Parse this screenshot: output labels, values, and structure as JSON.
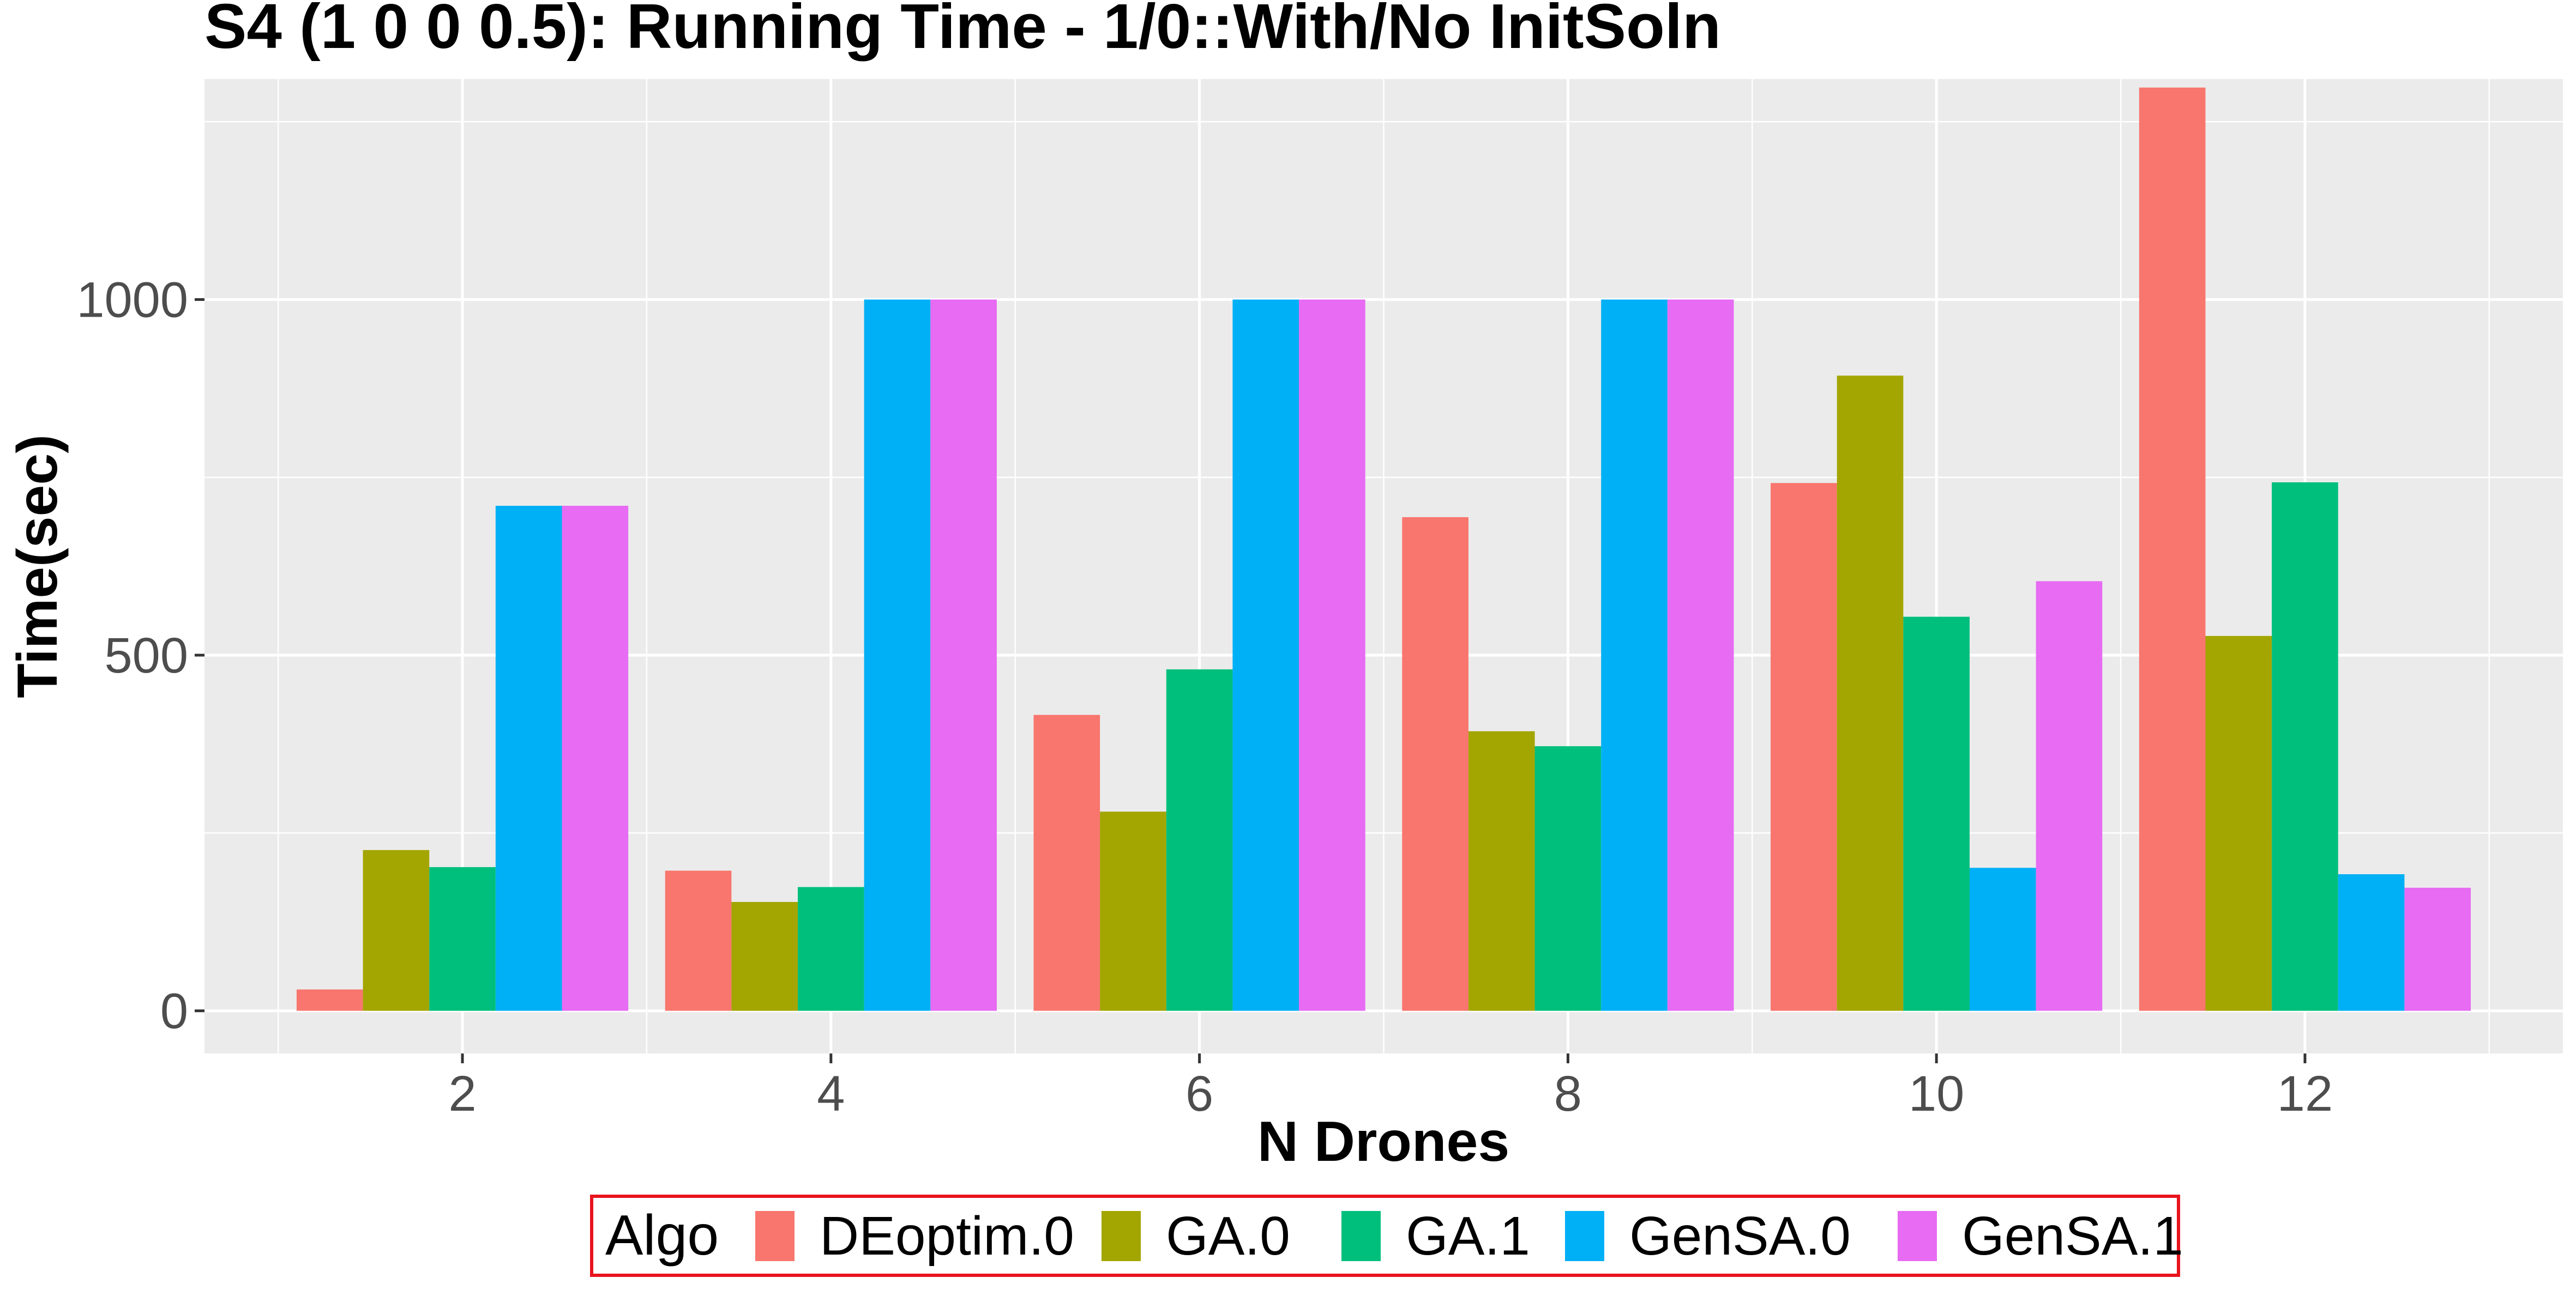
{
  "chart_data": {
    "type": "bar",
    "title": "S4 (1 0 0 0.5): Running Time - 1/0::With/No InitSoln",
    "xlabel": "N Drones",
    "ylabel": "Time(sec)",
    "categories": [
      "2",
      "4",
      "6",
      "8",
      "10",
      "12"
    ],
    "ylim": [
      -60,
      1310
    ],
    "yticks": [
      0,
      500,
      1000
    ],
    "grid": true,
    "legend": {
      "title": "Algo",
      "position": "bottom"
    },
    "series": [
      {
        "name": "DEoptim.0",
        "color": "#F8766D",
        "values": [
          30,
          197,
          416,
          694,
          742,
          1298
        ]
      },
      {
        "name": "GA.0",
        "color": "#A3A500",
        "values": [
          226,
          153,
          280,
          393,
          893,
          527
        ]
      },
      {
        "name": "GA.1",
        "color": "#00BF7D",
        "values": [
          202,
          174,
          480,
          372,
          554,
          743
        ]
      },
      {
        "name": "GenSA.0",
        "color": "#00B0F6",
        "values": [
          710,
          1000,
          1000,
          1000,
          201,
          192
        ]
      },
      {
        "name": "GenSA.1",
        "color": "#E76BF3",
        "values": [
          710,
          1000,
          1000,
          1000,
          604,
          173
        ]
      }
    ]
  }
}
